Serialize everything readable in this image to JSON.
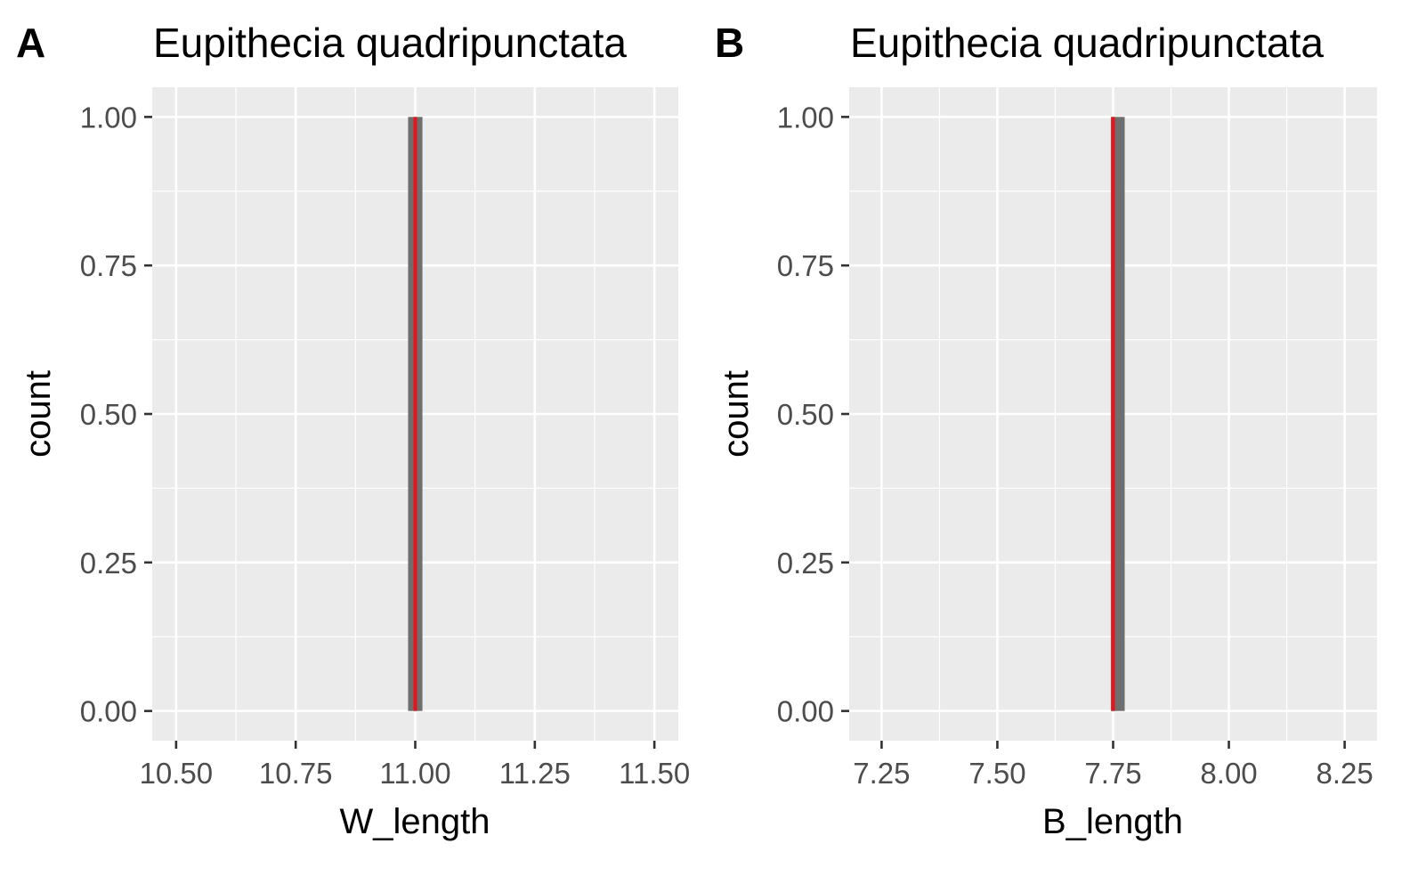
{
  "chart_data": [
    {
      "type": "bar",
      "panel_label": "A",
      "title": "Eupithecia quadripunctata",
      "xlabel": "W_length",
      "ylabel": "count",
      "xlim": [
        10.45,
        11.55
      ],
      "ylim": [
        -0.05,
        1.05
      ],
      "x_ticks": [
        10.5,
        10.75,
        11.0,
        11.25,
        11.5
      ],
      "x_tick_labels": [
        "10.50",
        "10.75",
        "11.00",
        "11.25",
        "11.50"
      ],
      "y_ticks": [
        0,
        0.25,
        0.5,
        0.75,
        1.0
      ],
      "y_tick_labels": [
        "0.00",
        "0.25",
        "0.50",
        "0.75",
        "1.00"
      ],
      "bars": [
        {
          "x_start": 10.985,
          "x_end": 11.015,
          "count": 1
        }
      ],
      "reference_line": {
        "x": 11.0,
        "color": "#e8141b"
      },
      "bar_color": "#6e6e6e",
      "grid": true
    },
    {
      "type": "bar",
      "panel_label": "B",
      "title": "Eupithecia quadripunctata",
      "xlabel": "B_length",
      "ylabel": "count",
      "xlim": [
        7.18,
        8.32
      ],
      "ylim": [
        -0.05,
        1.05
      ],
      "x_ticks": [
        7.25,
        7.5,
        7.75,
        8.0,
        8.25
      ],
      "x_tick_labels": [
        "7.25",
        "7.50",
        "7.75",
        "8.00",
        "8.25"
      ],
      "y_ticks": [
        0,
        0.25,
        0.5,
        0.75,
        1.0
      ],
      "y_tick_labels": [
        "0.00",
        "0.25",
        "0.50",
        "0.75",
        "1.00"
      ],
      "bars": [
        {
          "x_start": 7.745,
          "x_end": 7.775,
          "count": 1
        }
      ],
      "reference_line": {
        "x": 7.75,
        "color": "#e8141b"
      },
      "bar_color": "#6e6e6e",
      "grid": true
    }
  ],
  "style": {
    "panel_background": "#ebebeb",
    "grid_color": "#ffffff",
    "tick_label_color": "#4d4d4d",
    "axis_title_color": "#000000"
  }
}
